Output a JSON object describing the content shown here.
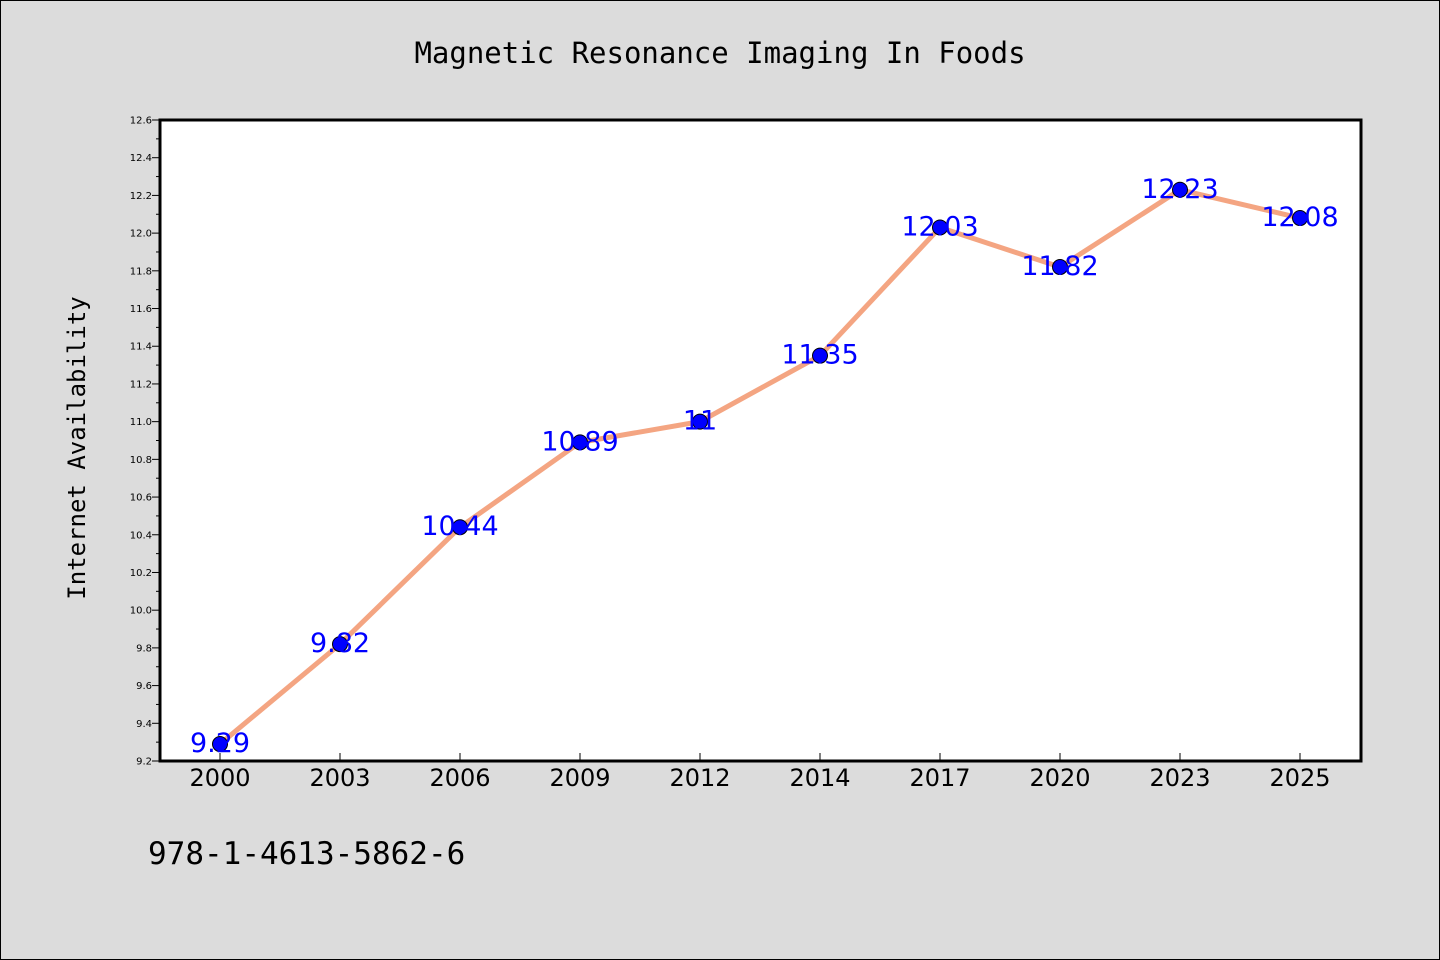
{
  "note": "978-1-4613-5862-6",
  "chart_data": {
    "type": "line",
    "title": "Magnetic Resonance Imaging In Foods",
    "xlabel": "",
    "ylabel": "Internet Availability",
    "categories": [
      "2000",
      "2003",
      "2006",
      "2009",
      "2012",
      "2014",
      "2017",
      "2020",
      "2023",
      "2025"
    ],
    "series": [
      {
        "values": [
          9.29,
          9.82,
          10.44,
          10.89,
          11,
          11.35,
          12.03,
          11.82,
          12.23,
          12.08
        ]
      }
    ],
    "data_labels": [
      "9.29",
      "9.82",
      "10.44",
      "10.89",
      "11",
      "11.35",
      "12.03",
      "11.82",
      "12.23",
      "12.08"
    ],
    "ylim": [
      9.2,
      12.6
    ],
    "yticks": [
      "9.2",
      "9.4",
      "9.6",
      "9.8",
      "10.0",
      "10.2",
      "10.4",
      "10.6",
      "10.8",
      "11.0",
      "11.2",
      "11.4",
      "11.6",
      "11.8",
      "12.0",
      "12.2",
      "12.4",
      "12.6"
    ],
    "grid": false,
    "legend": "none",
    "colors": {
      "line": "#f4a582",
      "marker": "#0000ff",
      "label": "#0000ff",
      "background": "#dcdcdc",
      "plot_background": "#ffffff"
    }
  }
}
